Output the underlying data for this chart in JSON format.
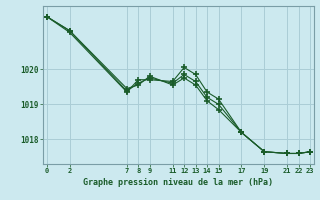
{
  "xlabel": "Graphe pression niveau de la mer (hPa)",
  "background_color": "#cce9ef",
  "grid_color": "#aacdd6",
  "line_color": "#1a5c2a",
  "series": [
    {
      "x": [
        0,
        2,
        7,
        8,
        9,
        11,
        12,
        13,
        14,
        15,
        17,
        19,
        21,
        22,
        23
      ],
      "y": [
        1021.5,
        1021.05,
        1019.35,
        1019.7,
        1019.7,
        1019.65,
        1020.05,
        1019.85,
        1019.35,
        1019.15,
        1018.2,
        1017.65,
        1017.6,
        1017.6,
        1017.65
      ]
    },
    {
      "x": [
        0,
        2,
        7,
        8,
        9,
        11,
        12,
        13,
        14,
        15,
        17,
        19,
        21,
        22,
        23
      ],
      "y": [
        1021.5,
        1021.1,
        1019.45,
        1019.55,
        1019.8,
        1019.55,
        1019.75,
        1019.55,
        1019.1,
        1018.85,
        1018.2,
        1017.65,
        1017.6,
        1017.6,
        1017.65
      ]
    },
    {
      "x": [
        0,
        2,
        7,
        8,
        9,
        11,
        12,
        13,
        14,
        15,
        17,
        19,
        21,
        22,
        23
      ],
      "y": [
        1021.5,
        1021.1,
        1019.38,
        1019.6,
        1019.75,
        1019.6,
        1019.85,
        1019.65,
        1019.2,
        1019.0,
        1018.2,
        1017.65,
        1017.6,
        1017.6,
        1017.65
      ]
    }
  ],
  "xticks": [
    0,
    2,
    7,
    8,
    9,
    11,
    12,
    13,
    14,
    15,
    17,
    19,
    21,
    22,
    23
  ],
  "yticks": [
    1018,
    1019,
    1020
  ],
  "ylim": [
    1017.3,
    1021.8
  ],
  "xlim": [
    -0.3,
    23.3
  ]
}
